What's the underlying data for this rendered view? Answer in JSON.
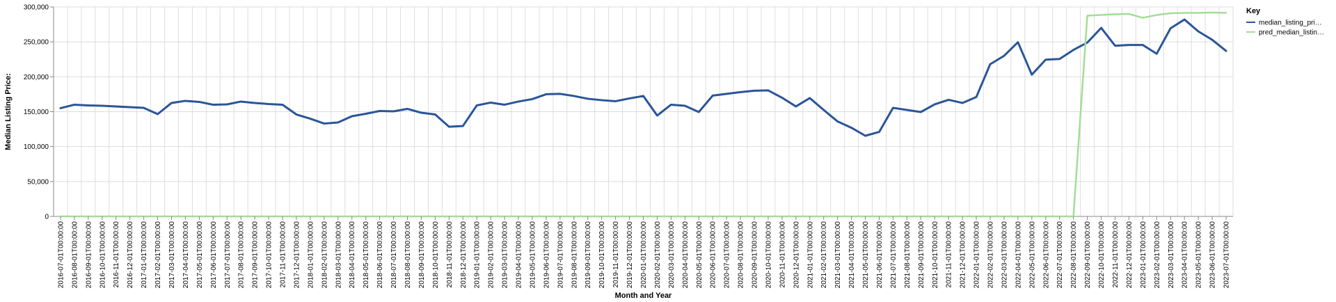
{
  "chart_data": {
    "type": "line",
    "title": "",
    "xlabel": "Month and Year",
    "ylabel": "Median Listing Price:",
    "ylim": [
      0,
      300000
    ],
    "yticks": [
      "0",
      "50,000",
      "100,000",
      "150,000",
      "200,000",
      "250,000",
      "300,000"
    ],
    "grid": true,
    "legend": {
      "title": "Key",
      "placement": "top-right",
      "items": [
        "median_listing_pri…",
        "pred_median_listin…"
      ]
    },
    "x": [
      "2016-07-01T00:00:00",
      "2016-08-01T00:00:00",
      "2016-09-01T00:00:00",
      "2016-10-01T00:00:00",
      "2016-11-01T00:00:00",
      "2016-12-01T00:00:00",
      "2017-01-01T00:00:00",
      "2017-02-01T00:00:00",
      "2017-03-01T00:00:00",
      "2017-04-01T00:00:00",
      "2017-05-01T00:00:00",
      "2017-06-01T00:00:00",
      "2017-07-01T00:00:00",
      "2017-08-01T00:00:00",
      "2017-09-01T00:00:00",
      "2017-10-01T00:00:00",
      "2017-11-01T00:00:00",
      "2017-12-01T00:00:00",
      "2018-01-01T00:00:00",
      "2018-02-01T00:00:00",
      "2018-03-01T00:00:00",
      "2018-04-01T00:00:00",
      "2018-05-01T00:00:00",
      "2018-06-01T00:00:00",
      "2018-07-01T00:00:00",
      "2018-08-01T00:00:00",
      "2018-09-01T00:00:00",
      "2018-10-01T00:00:00",
      "2018-11-01T00:00:00",
      "2018-12-01T00:00:00",
      "2019-01-01T00:00:00",
      "2019-02-01T00:00:00",
      "2019-03-01T00:00:00",
      "2019-04-01T00:00:00",
      "2019-05-01T00:00:00",
      "2019-06-01T00:00:00",
      "2019-07-01T00:00:00",
      "2019-08-01T00:00:00",
      "2019-09-01T00:00:00",
      "2019-10-01T00:00:00",
      "2019-11-01T00:00:00",
      "2019-12-01T00:00:00",
      "2020-01-01T00:00:00",
      "2020-02-01T00:00:00",
      "2020-03-01T00:00:00",
      "2020-04-01T00:00:00",
      "2020-05-01T00:00:00",
      "2020-06-01T00:00:00",
      "2020-07-01T00:00:00",
      "2020-08-01T00:00:00",
      "2020-09-01T00:00:00",
      "2020-10-01T00:00:00",
      "2020-11-01T00:00:00",
      "2020-12-01T00:00:00",
      "2021-01-01T00:00:00",
      "2021-02-01T00:00:00",
      "2021-03-01T00:00:00",
      "2021-04-01T00:00:00",
      "2021-05-01T00:00:00",
      "2021-06-01T00:00:00",
      "2021-07-01T00:00:00",
      "2021-08-01T00:00:00",
      "2021-09-01T00:00:00",
      "2021-10-01T00:00:00",
      "2021-11-01T00:00:00",
      "2021-12-01T00:00:00",
      "2022-01-01T00:00:00",
      "2022-02-01T00:00:00",
      "2022-03-01T00:00:00",
      "2022-04-01T00:00:00",
      "2022-05-01T00:00:00",
      "2022-06-01T00:00:00",
      "2022-07-01T00:00:00",
      "2022-08-01T00:00:00",
      "2022-09-01T00:00:00",
      "2022-10-01T00:00:00",
      "2022-11-01T00:00:00",
      "2022-12-01T00:00:00",
      "2023-01-01T00:00:00",
      "2023-02-01T00:00:00",
      "2023-03-01T00:00:00",
      "2023-04-01T00:00:00",
      "2023-05-01T00:00:00",
      "2023-06-01T00:00:00",
      "2023-07-01T00:00:00"
    ],
    "series": [
      {
        "name": "median_listing_pri…",
        "color": "#2a5599",
        "values": [
          155000,
          160000,
          159000,
          158500,
          157500,
          156500,
          155500,
          146500,
          162500,
          165500,
          164000,
          160000,
          160500,
          164500,
          162500,
          161000,
          160000,
          146000,
          140000,
          133000,
          134500,
          143500,
          147000,
          151000,
          150500,
          154000,
          148500,
          146000,
          128500,
          129500,
          159000,
          163000,
          160000,
          164500,
          168000,
          175000,
          175500,
          172500,
          168500,
          166500,
          165000,
          169000,
          172500,
          144500,
          160000,
          158500,
          149500,
          173000,
          175500,
          178000,
          180000,
          180500,
          170000,
          157500,
          169500,
          152500,
          136000,
          127000,
          115500,
          121000,
          155500,
          152500,
          149500,
          160500,
          167000,
          162500,
          171000,
          218000,
          230000,
          249500,
          203000,
          224500,
          225500,
          238500,
          249000,
          270000,
          244500,
          245500,
          245500,
          233000,
          269500,
          282000,
          265000,
          253000,
          237000
        ]
      },
      {
        "name": "pred_median_listin…",
        "color": "#a3dd97",
        "values": [
          0,
          0,
          0,
          0,
          0,
          0,
          0,
          0,
          0,
          0,
          0,
          0,
          0,
          0,
          0,
          0,
          0,
          0,
          0,
          0,
          0,
          0,
          0,
          0,
          0,
          0,
          0,
          0,
          0,
          0,
          0,
          0,
          0,
          0,
          0,
          0,
          0,
          0,
          0,
          0,
          0,
          0,
          0,
          0,
          0,
          0,
          0,
          0,
          0,
          0,
          0,
          0,
          0,
          0,
          0,
          0,
          0,
          0,
          0,
          0,
          0,
          0,
          0,
          0,
          0,
          0,
          0,
          0,
          0,
          0,
          0,
          0,
          0,
          0,
          287500,
          288500,
          289500,
          290000,
          284500,
          288500,
          291000,
          291500,
          291500,
          292000,
          291500
        ]
      }
    ]
  }
}
